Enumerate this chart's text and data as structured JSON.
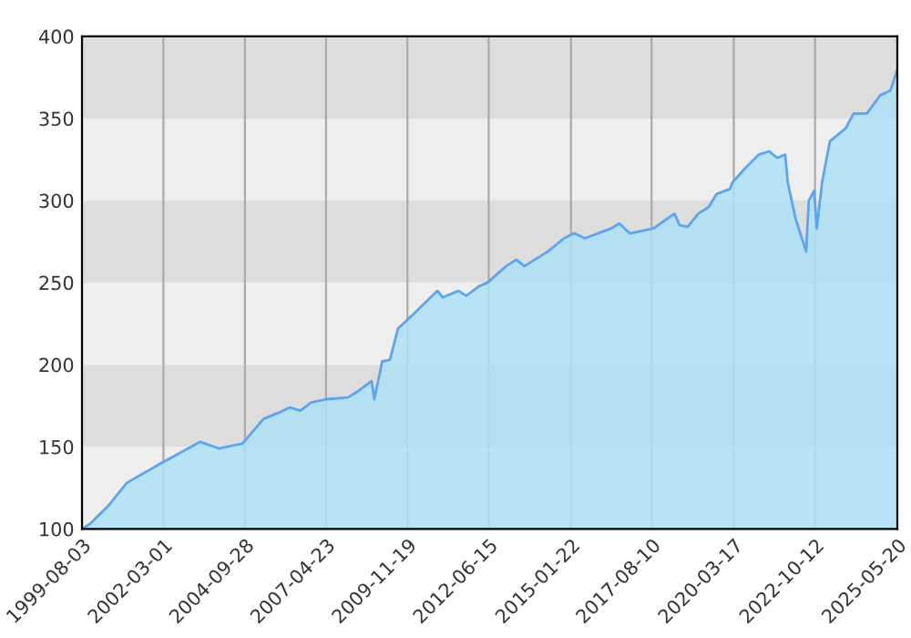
{
  "chart_data": {
    "type": "area",
    "x": [
      "1999-08-03",
      "1999-11",
      "2000-06",
      "2001-01",
      "2002-02",
      "2003-05",
      "2003-12",
      "2004-09",
      "2005-05",
      "2005-11",
      "2006-03",
      "2006-07",
      "2006-11",
      "2007-05",
      "2008-01",
      "2008-05",
      "2008-10",
      "2008-11",
      "2009-02",
      "2009-05",
      "2009-08",
      "2010-02",
      "2010-11",
      "2011-01",
      "2011-07",
      "2011-10",
      "2012-03",
      "2012-06",
      "2013-01",
      "2013-05",
      "2013-08",
      "2014-05",
      "2014-11",
      "2015-03",
      "2015-07",
      "2016-05",
      "2016-08",
      "2016-12",
      "2017-09",
      "2018-05",
      "2018-07",
      "2018-10",
      "2019-02",
      "2019-06",
      "2019-09",
      "2020-02",
      "2020-03",
      "2020-08",
      "2021-01",
      "2021-05",
      "2021-08",
      "2021-11",
      "2021-12",
      "2022-03",
      "2022-07",
      "2022-08",
      "2022-10",
      "2022-11",
      "2023-01",
      "2023-04",
      "2023-10",
      "2024-01",
      "2024-06",
      "2024-11",
      "2025-03",
      "2025-05-20"
    ],
    "series": [
      {
        "color": "#5aa5f0",
        "values": [
          100,
          103,
          114,
          128,
          140,
          153,
          149,
          152,
          167,
          171,
          174,
          172,
          177,
          179,
          180,
          184,
          190,
          179,
          202,
          203,
          222,
          231,
          245,
          241,
          245,
          242,
          248,
          250,
          260,
          264,
          260,
          269,
          277,
          280,
          277,
          283,
          286,
          280,
          283,
          292,
          285,
          284,
          292,
          296,
          304,
          307,
          311,
          320,
          328,
          330,
          326,
          328,
          311,
          289,
          269,
          300,
          306,
          283,
          311,
          336,
          344,
          353,
          353,
          364,
          367,
          380
        ]
      }
    ],
    "xlim": [
      "1999-08-03",
      "2025-05-20"
    ],
    "xticks": [
      "1999-08-03",
      "2002-03-01",
      "2004-09-28",
      "2007-04-23",
      "2009-11-19",
      "2012-06-15",
      "2015-01-22",
      "2017-08-10",
      "2020-03-17",
      "2022-10-12",
      "2025-05-20"
    ],
    "ylim": [
      100,
      400
    ],
    "yticks": [
      100,
      150,
      200,
      250,
      300,
      350,
      400
    ],
    "bands": [
      {
        "axis": "y",
        "from": 100,
        "to": 150,
        "color": "#eeeeee"
      },
      {
        "axis": "y",
        "from": 150,
        "to": 200,
        "color": "#dddddd"
      },
      {
        "axis": "y",
        "from": 200,
        "to": 250,
        "color": "#eeeeee"
      },
      {
        "axis": "y",
        "from": 250,
        "to": 300,
        "color": "#dddddd"
      },
      {
        "axis": "y",
        "from": 300,
        "to": 350,
        "color": "#eeeeee"
      },
      {
        "axis": "y",
        "from": 350,
        "to": 400,
        "color": "#dddddd"
      }
    ],
    "grid": "x",
    "legend": false
  }
}
